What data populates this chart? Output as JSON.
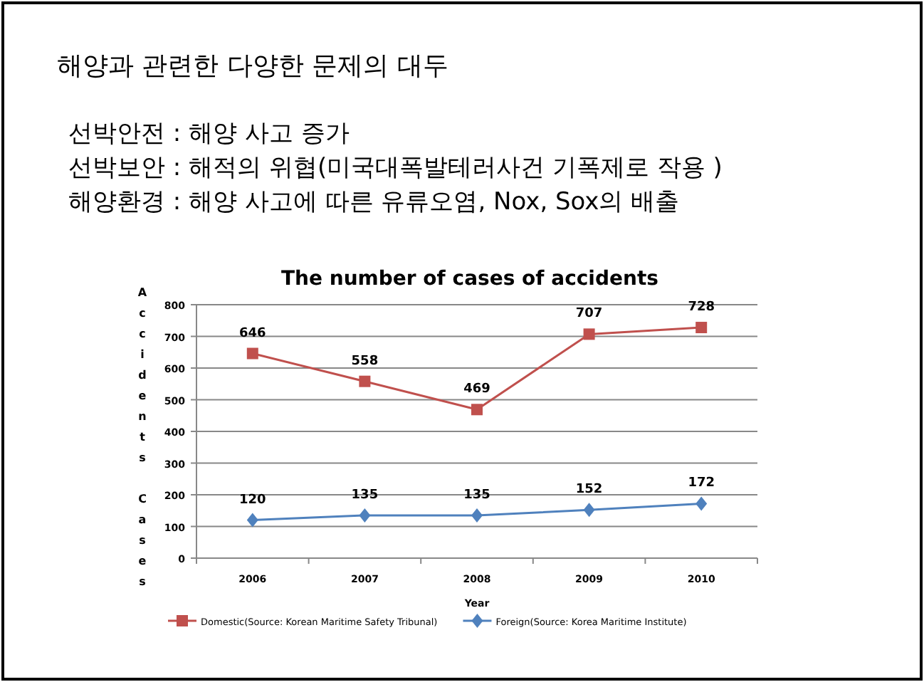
{
  "chart_data": {
    "type": "line",
    "title": "The number of cases of accidents",
    "annotations": [
      "해양과 관련한 다양한 문제의 대두",
      "선박안전 : 해양 사고 증가",
      "선박보안 : 해적의 위협(미국대폭발테러사건 기폭제로 작용 )",
      "해양환경 : 해양 사고에 따른 유류오염,  Nox, Sox의 배출"
    ],
    "xlabel": "Year",
    "ylabel": "Accidents Cases",
    "categories": [
      "2006",
      "2007",
      "2008",
      "2009",
      "2010"
    ],
    "series": [
      {
        "name": "Domestic(Source: Korean Maritime Safety Tribunal)",
        "color": "#c0504d",
        "marker": "square",
        "values": [
          646,
          558,
          469,
          707,
          728
        ]
      },
      {
        "name": "Foreign(Source: Korea Maritime Institute)",
        "color": "#4f81bd",
        "marker": "diamond",
        "values": [
          120,
          135,
          135,
          152,
          172
        ]
      }
    ],
    "ylim": [
      0,
      800
    ],
    "yticks": [
      0,
      100,
      200,
      300,
      400,
      500,
      600,
      700,
      800
    ],
    "grid": "y",
    "legend": "bottom",
    "data_labels": true,
    "line_style": "solid"
  }
}
